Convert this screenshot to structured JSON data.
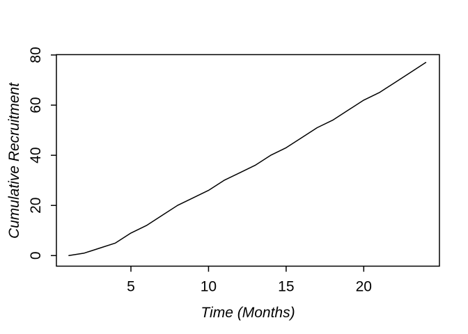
{
  "figure": {
    "background": "#ffffff",
    "axis_color": "#000000",
    "text_color": "#000000"
  },
  "chart_data": {
    "type": "line",
    "title": "",
    "xlabel": "Time (Months)",
    "ylabel": "Cumulative Recruitment",
    "x": [
      1,
      2,
      3,
      4,
      5,
      6,
      7,
      8,
      9,
      10,
      11,
      12,
      13,
      14,
      15,
      16,
      17,
      18,
      19,
      20,
      21,
      22,
      23,
      24
    ],
    "values": [
      0,
      1,
      3,
      5,
      9,
      12,
      16,
      20,
      23,
      26,
      30,
      33,
      36,
      40,
      43,
      47,
      51,
      54,
      58,
      62,
      65,
      69,
      73,
      77
    ],
    "x_ticks": [
      5,
      10,
      15,
      20
    ],
    "y_ticks": [
      0,
      20,
      40,
      60,
      80
    ],
    "xlim": [
      1,
      24
    ],
    "ylim": [
      0,
      80
    ],
    "grid": false,
    "legend": "none",
    "box": true,
    "line_color": "#000000"
  }
}
